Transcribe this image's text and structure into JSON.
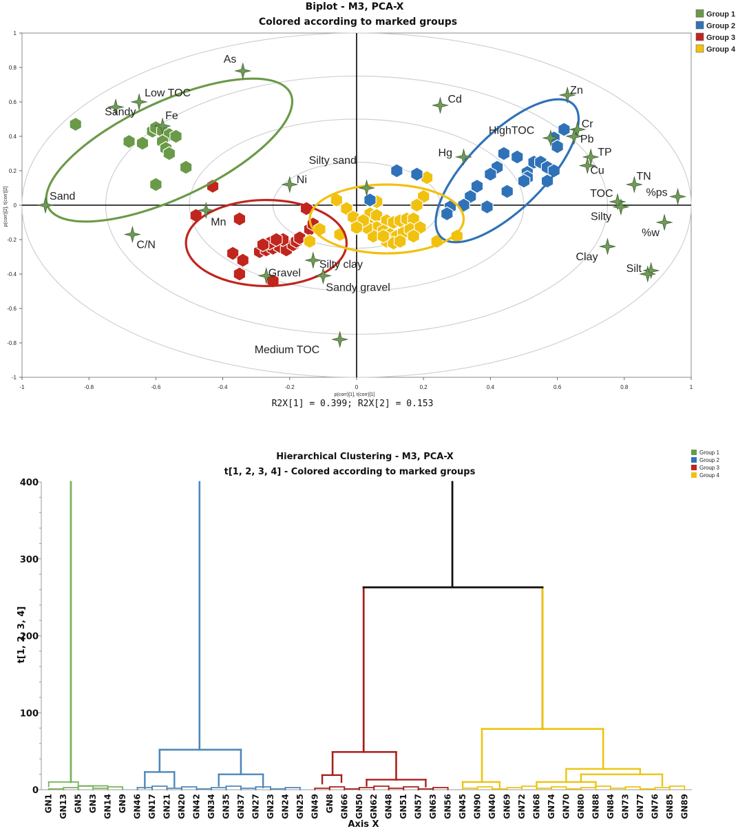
{
  "colors": {
    "group1": "#6a9a48",
    "group2": "#2f72b8",
    "group3": "#c0261e",
    "group4": "#f1c10f",
    "g1_tree": "#79b35d",
    "g2_tree": "#4d87bb",
    "g3_tree": "#a9201a",
    "g4_tree": "#ecc412",
    "star": "#6f9a57"
  },
  "chart_data": [
    {
      "type": "scatter",
      "title": "Biplot - M3, PCA-X",
      "subtitle": "Colored according to marked groups",
      "xlabel": "p(corr)[1], t(corr)[1]",
      "ylabel": "p(corr)[2], t(corr)[2]",
      "footer": "R2X[1] = 0.399; R2X[2] = 0.153",
      "xlim": [
        -1,
        1
      ],
      "ylim": [
        -1,
        1
      ],
      "xticks": [
        "-1",
        "-0.8",
        "-0.6",
        "-0.4",
        "-0.2",
        "0",
        "0.2",
        "0.4",
        "0.6",
        "0.8",
        "1"
      ],
      "yticks": [
        "1",
        "0.8",
        "0.6",
        "0.4",
        "0.2",
        "0",
        "-0.2",
        "-0.4",
        "-0.6",
        "-0.8",
        "-1"
      ],
      "legend": [
        "Group 1",
        "Group 2",
        "Group 3",
        "Group 4"
      ],
      "circles": [
        0.25,
        0.5,
        0.75,
        1.0
      ],
      "variables": [
        {
          "name": "As",
          "x": -0.34,
          "y": 0.78
        },
        {
          "name": "Low TOC",
          "x": -0.65,
          "y": 0.6
        },
        {
          "name": "Sandy",
          "x": -0.72,
          "y": 0.57
        },
        {
          "name": "Fe",
          "x": -0.58,
          "y": 0.46
        },
        {
          "name": "Sand",
          "x": -0.93,
          "y": 0.0
        },
        {
          "name": "C/N",
          "x": -0.67,
          "y": -0.17
        },
        {
          "name": "Ni",
          "x": -0.2,
          "y": 0.12
        },
        {
          "name": "Mn",
          "x": -0.45,
          "y": -0.03
        },
        {
          "name": "Gravel",
          "x": -0.27,
          "y": -0.41
        },
        {
          "name": "Silty clay",
          "x": -0.13,
          "y": -0.32
        },
        {
          "name": "Sandy gravel",
          "x": -0.1,
          "y": -0.41
        },
        {
          "name": "Silty sand",
          "x": 0.03,
          "y": 0.1
        },
        {
          "name": "Medium TOC",
          "x": -0.05,
          "y": -0.78
        },
        {
          "name": "Cd",
          "x": 0.25,
          "y": 0.58
        },
        {
          "name": "Hg",
          "x": 0.32,
          "y": 0.28
        },
        {
          "name": "HighTOC",
          "x": 0.58,
          "y": 0.39
        },
        {
          "name": "Zn",
          "x": 0.63,
          "y": 0.64
        },
        {
          "name": "Cr",
          "x": 0.66,
          "y": 0.44
        },
        {
          "name": "Pb",
          "x": 0.65,
          "y": 0.4
        },
        {
          "name": "TP",
          "x": 0.7,
          "y": 0.28
        },
        {
          "name": "Cu",
          "x": 0.69,
          "y": 0.23
        },
        {
          "name": "TN",
          "x": 0.83,
          "y": 0.12
        },
        {
          "name": "TOC",
          "x": 0.78,
          "y": 0.02
        },
        {
          "name": "Silty",
          "x": 0.79,
          "y": -0.01
        },
        {
          "name": "%ps",
          "x": 0.96,
          "y": 0.05
        },
        {
          "name": "%w",
          "x": 0.92,
          "y": -0.1
        },
        {
          "name": "Clay",
          "x": 0.75,
          "y": -0.24
        },
        {
          "name": "Silt",
          "x": 0.88,
          "y": -0.38
        },
        {
          "name": "",
          "x": 0.87,
          "y": -0.4
        }
      ],
      "groups": [
        {
          "name": "Group 1",
          "points": [
            [
              -0.84,
              0.47
            ],
            [
              -0.61,
              0.43
            ],
            [
              -0.6,
              0.45
            ],
            [
              -0.58,
              0.43
            ],
            [
              -0.56,
              0.41
            ],
            [
              -0.54,
              0.4
            ],
            [
              -0.68,
              0.37
            ],
            [
              -0.64,
              0.36
            ],
            [
              -0.58,
              0.37
            ],
            [
              -0.57,
              0.33
            ],
            [
              -0.56,
              0.3
            ],
            [
              -0.51,
              0.22
            ],
            [
              -0.6,
              0.12
            ]
          ]
        },
        {
          "name": "Group 2",
          "points": [
            [
              0.62,
              0.44
            ],
            [
              0.59,
              0.39
            ],
            [
              0.6,
              0.34
            ],
            [
              0.44,
              0.3
            ],
            [
              0.48,
              0.28
            ],
            [
              0.53,
              0.25
            ],
            [
              0.42,
              0.22
            ],
            [
              0.55,
              0.25
            ],
            [
              0.57,
              0.22
            ],
            [
              0.59,
              0.2
            ],
            [
              0.4,
              0.18
            ],
            [
              0.51,
              0.19
            ],
            [
              0.51,
              0.16
            ],
            [
              0.57,
              0.14
            ],
            [
              0.36,
              0.11
            ],
            [
              0.5,
              0.14
            ],
            [
              0.45,
              0.08
            ],
            [
              0.34,
              0.05
            ],
            [
              0.39,
              -0.01
            ],
            [
              0.32,
              0.0
            ],
            [
              0.28,
              -0.01
            ],
            [
              0.27,
              -0.05
            ],
            [
              0.12,
              0.2
            ],
            [
              0.18,
              0.18
            ],
            [
              0.04,
              0.03
            ]
          ]
        },
        {
          "name": "Group 3",
          "points": [
            [
              -0.43,
              0.11
            ],
            [
              -0.48,
              -0.06
            ],
            [
              -0.35,
              -0.08
            ],
            [
              -0.15,
              -0.02
            ],
            [
              -0.37,
              -0.28
            ],
            [
              -0.34,
              -0.32
            ],
            [
              -0.35,
              -0.4
            ],
            [
              -0.25,
              -0.44
            ],
            [
              -0.29,
              -0.27
            ],
            [
              -0.27,
              -0.26
            ],
            [
              -0.25,
              -0.25
            ],
            [
              -0.23,
              -0.24
            ],
            [
              -0.21,
              -0.26
            ],
            [
              -0.19,
              -0.23
            ],
            [
              -0.18,
              -0.21
            ],
            [
              -0.26,
              -0.22
            ],
            [
              -0.22,
              -0.2
            ],
            [
              -0.17,
              -0.19
            ],
            [
              -0.14,
              -0.14
            ],
            [
              -0.13,
              -0.11
            ],
            [
              -0.28,
              -0.23
            ],
            [
              -0.24,
              -0.2
            ]
          ]
        },
        {
          "name": "Group 4",
          "points": [
            [
              -0.06,
              0.03
            ],
            [
              0.06,
              0.02
            ],
            [
              0.2,
              0.05
            ],
            [
              0.18,
              0.0
            ],
            [
              0.21,
              0.16
            ],
            [
              -0.03,
              -0.02
            ],
            [
              -0.01,
              -0.07
            ],
            [
              0.04,
              -0.05
            ],
            [
              0.06,
              -0.06
            ],
            [
              0.09,
              -0.09
            ],
            [
              0.11,
              -0.1
            ],
            [
              0.13,
              -0.09
            ],
            [
              0.15,
              -0.08
            ],
            [
              0.17,
              -0.08
            ],
            [
              0.04,
              -0.12
            ],
            [
              0.06,
              -0.13
            ],
            [
              0.08,
              -0.15
            ],
            [
              0.1,
              -0.17
            ],
            [
              0.12,
              -0.18
            ],
            [
              0.14,
              -0.16
            ],
            [
              0.16,
              -0.14
            ],
            [
              0.19,
              -0.13
            ],
            [
              0.05,
              -0.18
            ],
            [
              0.09,
              -0.21
            ],
            [
              0.11,
              -0.22
            ],
            [
              0.13,
              -0.21
            ],
            [
              0.17,
              -0.18
            ],
            [
              0.03,
              -0.13
            ],
            [
              0.08,
              -0.18
            ],
            [
              -0.14,
              -0.21
            ],
            [
              -0.11,
              -0.14
            ],
            [
              -0.05,
              -0.17
            ],
            [
              0.24,
              -0.21
            ],
            [
              0.3,
              -0.18
            ],
            [
              0.02,
              -0.09
            ],
            [
              0.0,
              -0.13
            ]
          ]
        }
      ],
      "ellipses": [
        {
          "group": "Group 1",
          "cx": -0.56,
          "cy": 0.32,
          "rx": 0.4,
          "ry": 0.28,
          "rot_deg": -25
        },
        {
          "group": "Group 2",
          "cx": 0.45,
          "cy": 0.2,
          "rx": 0.28,
          "ry": 0.22,
          "rot_deg": -45
        },
        {
          "group": "Group 3",
          "cx": -0.27,
          "cy": -0.22,
          "rx": 0.24,
          "ry": 0.25,
          "rot_deg": 0
        },
        {
          "group": "Group 4",
          "cx": 0.09,
          "cy": -0.08,
          "rx": 0.23,
          "ry": 0.2,
          "rot_deg": 0
        }
      ]
    },
    {
      "type": "dendrogram",
      "title": "Hierarchical Clustering - M3, PCA-X",
      "subtitle": "t[1, 2, 3, 4] - Colored according to marked groups",
      "xlabel": "Axis X",
      "ylabel": "t[1, 2, 3, 4]",
      "ylim": [
        0,
        400
      ],
      "yticks": [
        0,
        100,
        200,
        300,
        400
      ],
      "legend": [
        "Group 1",
        "Group 2",
        "Group 3",
        "Group 4"
      ],
      "leaves": [
        "GN1",
        "GN13",
        "GN5",
        "GN3",
        "GN14",
        "GN9",
        "GN46",
        "GN17",
        "GN21",
        "GN20",
        "GN42",
        "GN34",
        "GN35",
        "GN37",
        "GN27",
        "GN23",
        "GN24",
        "GN25",
        "GN49",
        "GN8",
        "GN66",
        "GN50",
        "GN62",
        "GN48",
        "GN51",
        "GN57",
        "GN63",
        "GN56",
        "GN45",
        "GN90",
        "GN40",
        "GN69",
        "GN72",
        "GN68",
        "GN74",
        "GN70",
        "GN80",
        "GN88",
        "GN84",
        "GN73",
        "GN77",
        "GN76",
        "GN85",
        "GN89"
      ],
      "merges": [
        {
          "group": 1,
          "x1": 0.2,
          "x2": 2.5,
          "h": 400
        },
        {
          "group": 2,
          "x1": 7.5,
          "x2": 13.0,
          "h": 52
        },
        {
          "group": 2,
          "x1": 7.5,
          "x2": 9.5,
          "h": 23
        },
        {
          "group": 2,
          "x1": 11.5,
          "x2": 15.0,
          "h": 20
        },
        {
          "group": 3,
          "x1": 19.5,
          "x2": 24.0,
          "h": 49
        },
        {
          "group": 3,
          "x1": 19.0,
          "x2": 20.5,
          "h": 19
        },
        {
          "group": 3,
          "x1": 22.5,
          "x2": 25.5,
          "h": 13
        },
        {
          "group": 4,
          "x1": 30.0,
          "x2": 39.0,
          "h": 79
        },
        {
          "group": 4,
          "x1": 34.0,
          "x2": 42.0,
          "h": 27
        },
        {
          "group": 4,
          "x1": 38.5,
          "x2": 43.0,
          "h": 20
        },
        {
          "group": 0,
          "x1": 21.7,
          "x2": 34.5,
          "h": 263
        }
      ]
    }
  ]
}
